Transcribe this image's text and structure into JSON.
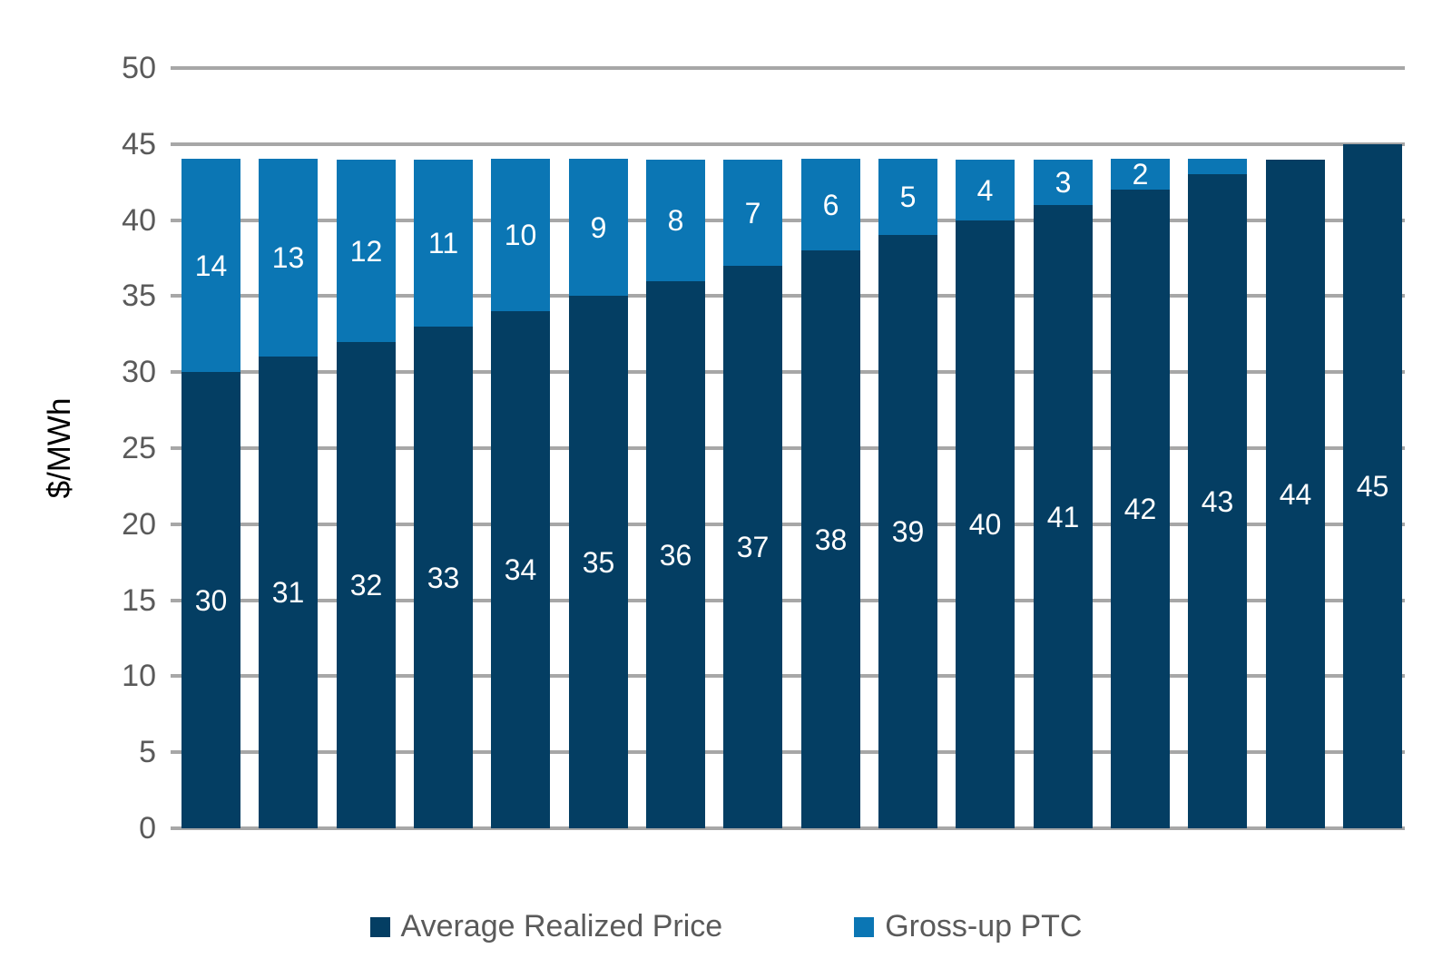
{
  "chart_data": {
    "type": "bar",
    "stacked": true,
    "title": "",
    "xlabel": "",
    "ylabel": "$/MWh",
    "ylim": [
      0,
      50
    ],
    "yticks": [
      0,
      5,
      10,
      15,
      20,
      25,
      30,
      35,
      40,
      45,
      50
    ],
    "grid": true,
    "x_tick_labels_visible": false,
    "bar_count": 16,
    "legend_position": "bottom",
    "series": [
      {
        "name": "Average Realized Price",
        "color": "#043E63",
        "values": [
          30,
          31,
          32,
          33,
          34,
          35,
          36,
          37,
          38,
          39,
          40,
          41,
          42,
          43,
          44,
          45
        ],
        "label_color": "#FFFFFF",
        "label_min_value": 0
      },
      {
        "name": "Gross-up PTC",
        "color": "#0B76B4",
        "values": [
          14,
          13,
          12,
          11,
          10,
          9,
          8,
          7,
          6,
          5,
          4,
          3,
          2,
          1,
          0,
          0
        ],
        "label_color": "#FFFFFF",
        "label_min_value": 2
      }
    ],
    "stack_totals": [
      44,
      44,
      44,
      44,
      44,
      44,
      44,
      44,
      44,
      44,
      44,
      44,
      44,
      44,
      44,
      45
    ]
  },
  "style_colors": {
    "gridline": "#A7A7A7",
    "axis_text": "#5A5A5A",
    "background": "#FFFFFF"
  }
}
